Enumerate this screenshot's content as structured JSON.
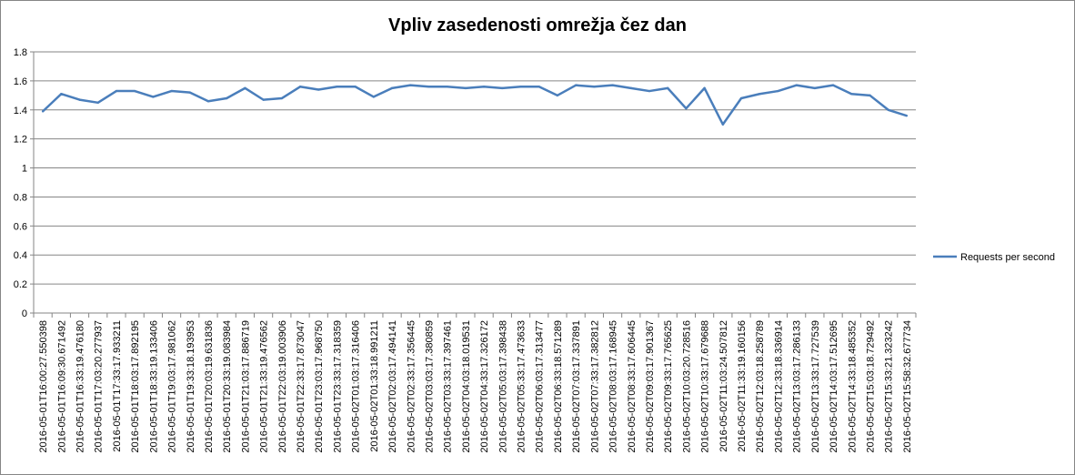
{
  "chart_data": {
    "type": "line",
    "title": "Vpliv zasedenosti omrežja čez dan",
    "xlabel": "",
    "ylabel": "",
    "ylim": [
      0,
      1.8
    ],
    "yticks": [
      "0",
      "0.2",
      "0.4",
      "0.6",
      "0.8",
      "1",
      "1.2",
      "1.4",
      "1.6",
      "1.8"
    ],
    "grid": true,
    "legend_position": "right",
    "line_color": "#4a7ebb",
    "categories": [
      "2016-05-01T16:00:27.550398",
      "2016-05-01T16:09:30.671492",
      "2016-05-01T16:33:19.476180",
      "2016-05-01T17:03:20.277937",
      "2016-05-01T17:33:17.933211",
      "2016-05-01T18:03:17.892195",
      "2016-05-01T18:33:19.133406",
      "2016-05-01T19:03:17.981062",
      "2016-05-01T19:33:18.193953",
      "2016-05-01T20:03:19.631836",
      "2016-05-01T20:33:19.083984",
      "2016-05-01T21:03:17.886719",
      "2016-05-01T21:33:19.476562",
      "2016-05-01T22:03:19.003906",
      "2016-05-01T22:33:17.873047",
      "2016-05-01T23:03:17.968750",
      "2016-05-01T23:33:17.318359",
      "2016-05-02T01:03:17.316406",
      "2016-05-02T01:33:18.991211",
      "2016-05-02T02:03:17.494141",
      "2016-05-02T02:33:17.356445",
      "2016-05-02T03:03:17.380859",
      "2016-05-02T03:33:17.397461",
      "2016-05-02T04:03:18.019531",
      "2016-05-02T04:33:17.326172",
      "2016-05-02T05:03:17.398438",
      "2016-05-02T05:33:17.473633",
      "2016-05-02T06:03:17.313477",
      "2016-05-02T06:33:18.571289",
      "2016-05-02T07:03:17.337891",
      "2016-05-02T07:33:17.382812",
      "2016-05-02T08:03:17.168945",
      "2016-05-02T08:33:17.606445",
      "2016-05-02T09:03:17.901367",
      "2016-05-02T09:33:17.765625",
      "2016-05-02T10:03:20.728516",
      "2016-05-02T10:33:17.679688",
      "2016-05-02T11:03:24.507812",
      "2016-05-02T11:33:19.160156",
      "2016-05-02T12:03:18.258789",
      "2016-05-02T12:33:18.336914",
      "2016-05-02T13:03:17.286133",
      "2016-05-02T13:33:17.727539",
      "2016-05-02T14:03:17.512695",
      "2016-05-02T14:33:18.485352",
      "2016-05-02T15:03:18.729492",
      "2016-05-02T15:33:21.323242",
      "2016-05-02T15:58:32.677734"
    ],
    "series": [
      {
        "name": "Requests per second",
        "values": [
          1.39,
          1.51,
          1.47,
          1.45,
          1.53,
          1.53,
          1.49,
          1.53,
          1.52,
          1.46,
          1.48,
          1.55,
          1.47,
          1.48,
          1.56,
          1.54,
          1.56,
          1.56,
          1.49,
          1.55,
          1.57,
          1.56,
          1.56,
          1.55,
          1.56,
          1.55,
          1.56,
          1.56,
          1.5,
          1.57,
          1.56,
          1.57,
          1.55,
          1.53,
          1.55,
          1.41,
          1.55,
          1.3,
          1.48,
          1.51,
          1.53,
          1.57,
          1.55,
          1.57,
          1.51,
          1.5,
          1.4,
          1.36
        ]
      }
    ]
  }
}
